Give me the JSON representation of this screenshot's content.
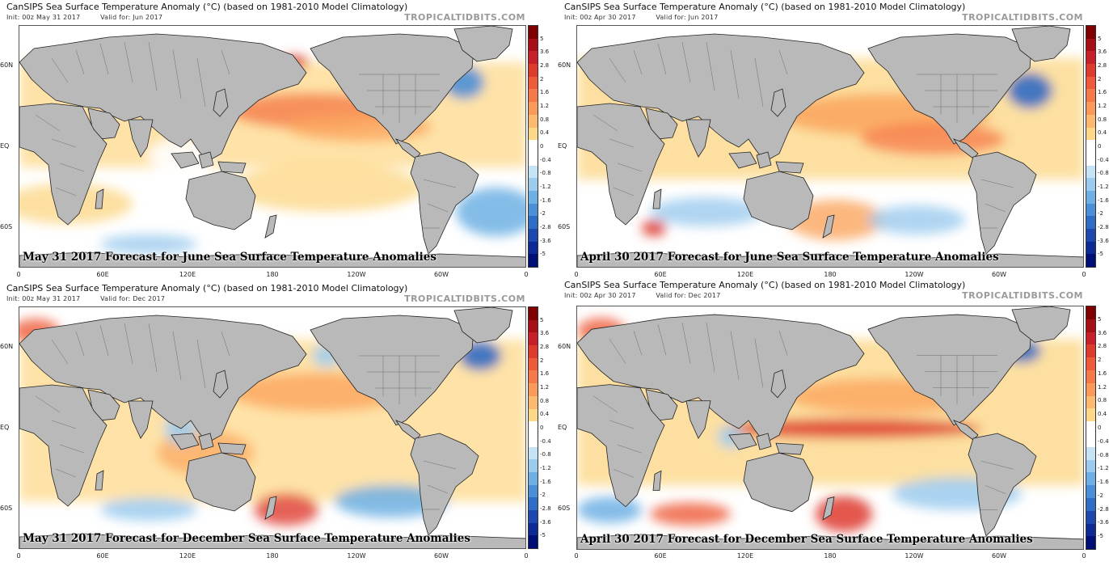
{
  "common": {
    "title": "CanSIPS Sea Surface Temperature Anomaly (°C) (based on 1981-2010 Model Climatology)",
    "brand": "TROPICALTIDBITS.COM",
    "lat_labels": [
      "60N",
      "EQ",
      "60S"
    ],
    "lon_labels": [
      "0",
      "60E",
      "120E",
      "180",
      "120W",
      "60W",
      "0"
    ],
    "colorbar_labels": [
      "5",
      "3.6",
      "2.8",
      "2",
      "1.6",
      "1.2",
      "0.8",
      "0.4",
      "0",
      "-0.4",
      "-0.8",
      "-1.2",
      "-1.6",
      "-2",
      "-2.8",
      "-3.6",
      "-5"
    ],
    "colorbar_colors": [
      "#7f0000",
      "#a50f15",
      "#c8202a",
      "#de3b2f",
      "#ee5a3a",
      "#f57a4a",
      "#fa9a5a",
      "#fcba6e",
      "#fdd889",
      "#ffffff",
      "#ffffff",
      "#c6e2f5",
      "#9ccbee",
      "#6fb0e4",
      "#4b90d6",
      "#2f6cc3",
      "#1d48ad",
      "#0d2a94",
      "#000f73"
    ],
    "colors": {
      "ocean_neutral": "#ffffff",
      "land": "#b9b9b9",
      "warm_light": "#fdd889",
      "warm_mid": "#fba55e",
      "warm_strong": "#e3432f",
      "cool_light": "#c6e2f5",
      "cool_mid": "#6fb0e4",
      "cool_strong": "#1d48ad"
    }
  },
  "panels": [
    {
      "init": "Init: 00z May 31 2017",
      "valid": "Valid for: Jun 2017",
      "caption": "May 31 2017 Forecast for June Sea Surface Temperature Anomalies"
    },
    {
      "init": "Init: 00z Apr 30 2017",
      "valid": "Valid for: Jun 2017",
      "caption": "April 30 2017 Forecast for June Sea Surface Temperature Anomalies"
    },
    {
      "init": "Init: 00z May 31 2017",
      "valid": "Valid for: Dec 2017",
      "caption": "May 31 2017 Forecast for December Sea Surface Temperature Anomalies"
    },
    {
      "init": "Init: 00z Apr 30 2017",
      "valid": "Valid for: Dec 2017",
      "caption": "April 30 2017 Forecast for December Sea Surface Temperature Anomalies"
    }
  ]
}
